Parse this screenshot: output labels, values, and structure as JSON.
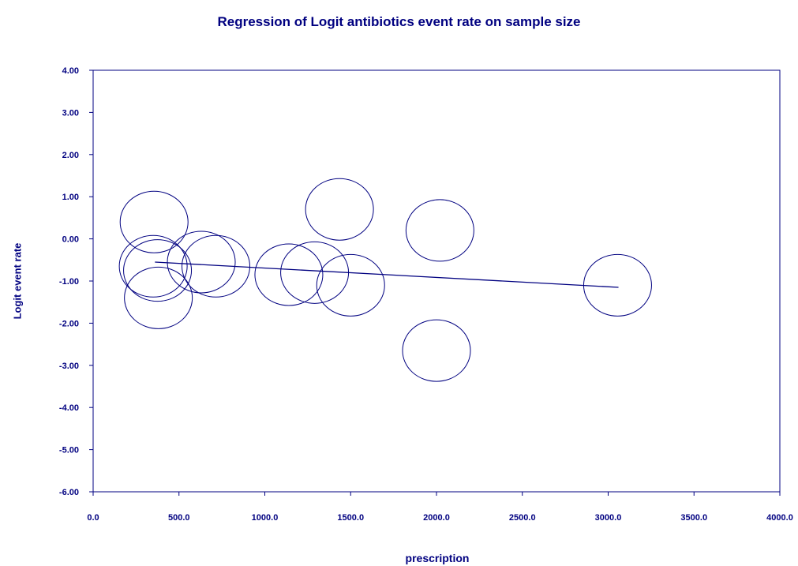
{
  "chart_data": {
    "type": "scatter",
    "title": "Regression of Logit antibiotics event rate on sample size",
    "xlabel": "prescription",
    "ylabel": "Logit event rate",
    "xlim": [
      0,
      4000
    ],
    "ylim": [
      -6,
      4
    ],
    "x_ticks": [
      "0.0",
      "500.0",
      "1000.0",
      "1500.0",
      "2000.0",
      "2500.0",
      "3000.0",
      "3500.0",
      "4000.0"
    ],
    "y_ticks": [
      "4.00",
      "3.00",
      "2.00",
      "1.00",
      "0.00",
      "-1.00",
      "-2.00",
      "-3.00",
      "-4.00",
      "-5.00",
      "-6.00"
    ],
    "x_tick_values": [
      0,
      500,
      1000,
      1500,
      2000,
      2500,
      3000,
      3500,
      4000
    ],
    "y_tick_values": [
      4,
      3,
      2,
      1,
      0,
      -1,
      -2,
      -3,
      -4,
      -5,
      -6
    ],
    "points": [
      {
        "x": 355,
        "y": 0.4
      },
      {
        "x": 350,
        "y": -0.65
      },
      {
        "x": 375,
        "y": -0.75
      },
      {
        "x": 380,
        "y": -1.4
      },
      {
        "x": 630,
        "y": -0.55
      },
      {
        "x": 715,
        "y": -0.65
      },
      {
        "x": 1140,
        "y": -0.85
      },
      {
        "x": 1290,
        "y": -0.8
      },
      {
        "x": 1435,
        "y": 0.7
      },
      {
        "x": 1500,
        "y": -1.1
      },
      {
        "x": 2020,
        "y": 0.2
      },
      {
        "x": 2000,
        "y": -2.65
      },
      {
        "x": 3055,
        "y": -1.1
      }
    ],
    "regression_line": {
      "x": [
        360,
        3060
      ],
      "y": [
        -0.55,
        -1.15
      ]
    },
    "grid": false,
    "legend": "none",
    "marker": "open-circle",
    "colors": {
      "series": "#000080",
      "axis": "#000080",
      "text": "#000080"
    }
  }
}
